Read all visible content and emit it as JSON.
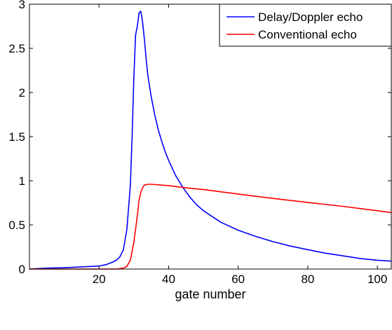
{
  "chart_data": {
    "type": "line",
    "xlabel": "gate number",
    "ylabel": "",
    "xlim": [
      0,
      104
    ],
    "ylim": [
      0,
      3
    ],
    "xticks": [
      20,
      40,
      60,
      80,
      100
    ],
    "yticks": [
      0,
      0.5,
      1,
      1.5,
      2,
      2.5,
      3
    ],
    "xtick_labels": [
      "20",
      "40",
      "60",
      "80",
      "100"
    ],
    "ytick_labels": [
      "0",
      "0.5",
      "1",
      "1.5",
      "2",
      "2.5",
      "3"
    ],
    "grid": false,
    "legend_position": "top-right",
    "series": [
      {
        "name": "Delay/Doppler echo",
        "color": "#0000ff",
        "x": [
          0,
          5,
          10,
          15,
          18,
          20,
          22,
          24,
          25,
          26,
          27,
          28,
          29,
          29.5,
          30,
          30.5,
          31,
          31.5,
          32,
          32.5,
          33,
          33.5,
          34,
          35,
          36,
          37,
          38,
          39,
          40,
          42,
          44,
          46,
          48,
          50,
          55,
          60,
          65,
          70,
          75,
          80,
          85,
          90,
          95,
          100,
          104
        ],
        "y": [
          0.0,
          0.01,
          0.015,
          0.025,
          0.03,
          0.035,
          0.05,
          0.08,
          0.1,
          0.14,
          0.22,
          0.45,
          0.95,
          1.5,
          2.15,
          2.65,
          2.75,
          2.9,
          2.92,
          2.8,
          2.62,
          2.4,
          2.2,
          1.95,
          1.75,
          1.58,
          1.45,
          1.33,
          1.23,
          1.06,
          0.93,
          0.82,
          0.73,
          0.66,
          0.53,
          0.44,
          0.37,
          0.31,
          0.26,
          0.22,
          0.18,
          0.15,
          0.12,
          0.1,
          0.09
        ]
      },
      {
        "name": "Conventional echo",
        "color": "#ff0000",
        "x": [
          0,
          10,
          20,
          25,
          27,
          28,
          29,
          30,
          31,
          31.5,
          32,
          32.5,
          33,
          34,
          35,
          40,
          45,
          50,
          60,
          70,
          80,
          90,
          100,
          104
        ],
        "y": [
          0.0,
          0.0,
          0.0,
          0.0,
          0.01,
          0.03,
          0.1,
          0.3,
          0.6,
          0.78,
          0.87,
          0.92,
          0.95,
          0.96,
          0.96,
          0.945,
          0.92,
          0.9,
          0.85,
          0.8,
          0.755,
          0.71,
          0.66,
          0.64
        ]
      }
    ]
  }
}
